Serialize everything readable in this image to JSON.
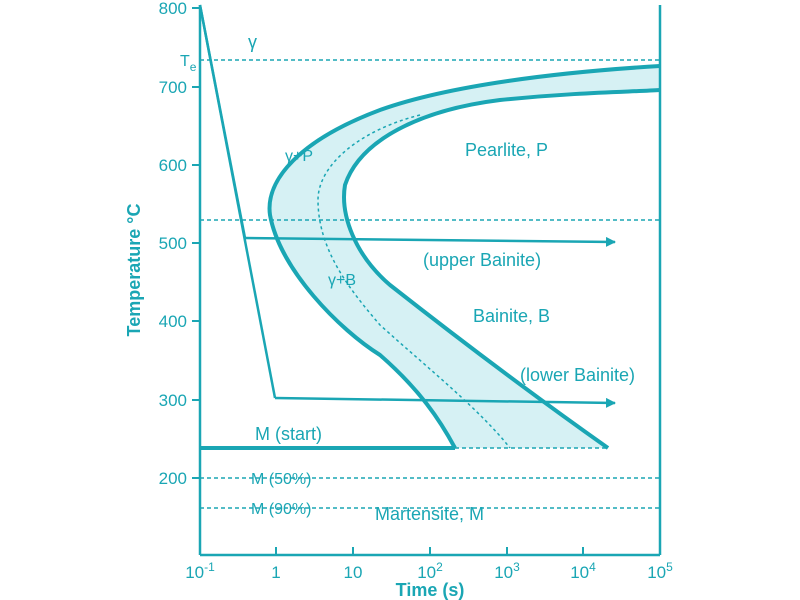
{
  "colors": {
    "main": "#1aa6b4",
    "band": "#d6f1f4"
  },
  "axes": {
    "xlabel": "Time (s)",
    "ylabel": "Temperature °C",
    "x_scale": "log",
    "x_ticks": [
      {
        "base": "10",
        "exp": "-1"
      },
      {
        "base": "1",
        "exp": ""
      },
      {
        "base": "10",
        "exp": ""
      },
      {
        "base": "10",
        "exp": "2"
      },
      {
        "base": "10",
        "exp": "3"
      },
      {
        "base": "10",
        "exp": "4"
      },
      {
        "base": "10",
        "exp": "5"
      }
    ],
    "y_ticks": [
      "800",
      "700",
      "600",
      "500",
      "400",
      "300",
      "200"
    ]
  },
  "reference_lines": {
    "te": {
      "symbol": "T",
      "sub": "e",
      "temperature": 733
    },
    "gamma": "γ",
    "m50": "M (50%)",
    "m90": "M (90%)",
    "mstart": "M (start)"
  },
  "regions": {
    "pearlite": "Pearlite, P",
    "bainite": "Bainite, B",
    "martensite": "Martensite, M",
    "gamma_p": "γ+P",
    "gamma_b": "γ+B",
    "upper_bainite": "(upper Bainite)",
    "lower_bainite": "(lower Bainite)"
  }
}
